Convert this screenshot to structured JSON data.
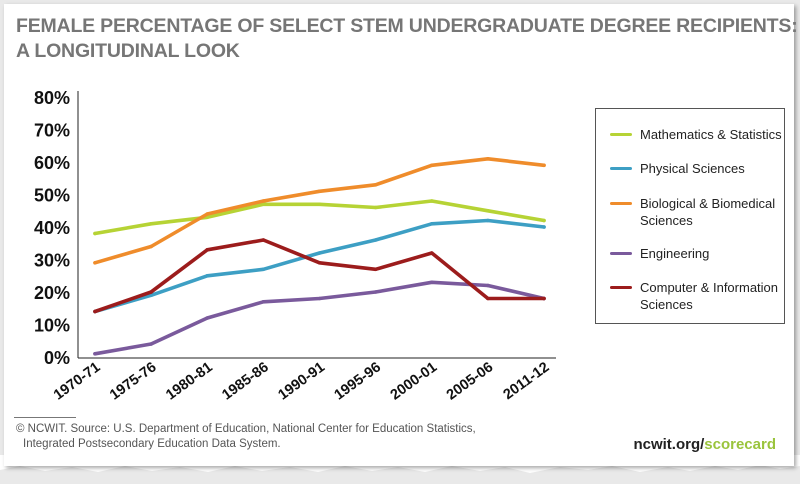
{
  "title_line1": "FEMALE PERCENTAGE OF SELECT STEM UNDERGRADUATE DEGREE RECIPIENTS:",
  "title_line2": "A LONGITUDINAL LOOK",
  "source_line1": "© NCWIT. Source: U.S. Department of Education, National Center for Education Statistics,",
  "source_line2": "Integrated Postsecondary Education Data System.",
  "brand_main": "ncwit.org/",
  "brand_accent": "scorecard",
  "colors": {
    "accent": "#9ac43c"
  },
  "chart_data": {
    "type": "line",
    "title": "FEMALE PERCENTAGE OF SELECT STEM UNDERGRADUATE DEGREE RECIPIENTS: A LONGITUDINAL LOOK",
    "xlabel": "",
    "ylabel": "",
    "ylim": [
      0,
      80
    ],
    "yticks": [
      "0%",
      "10%",
      "20%",
      "30%",
      "40%",
      "50%",
      "60%",
      "70%",
      "80%"
    ],
    "categories": [
      "1970-71",
      "1975-76",
      "1980-81",
      "1985-86",
      "1990-91",
      "1995-96",
      "2000-01",
      "2005-06",
      "2011-12"
    ],
    "grid": false,
    "legend_position": "right",
    "series": [
      {
        "name": "Mathematics & Statistics",
        "color": "#b6d335",
        "values": [
          38,
          41,
          43,
          47,
          47,
          46,
          48,
          45,
          42
        ]
      },
      {
        "name": "Physical Sciences",
        "color": "#3d9fc4",
        "values": [
          14,
          19,
          25,
          27,
          32,
          36,
          41,
          42,
          40
        ]
      },
      {
        "name": "Biological & Biomedical Sciences",
        "color": "#ef8c2b",
        "values": [
          29,
          34,
          44,
          48,
          51,
          53,
          59,
          61,
          59
        ]
      },
      {
        "name": "Engineering",
        "color": "#7a5a9c",
        "values": [
          1,
          4,
          12,
          17,
          18,
          20,
          23,
          22,
          18
        ]
      },
      {
        "name": "Computer & Information Sciences",
        "color": "#9c1c1c",
        "values": [
          14,
          20,
          33,
          36,
          29,
          27,
          32,
          18,
          18
        ]
      }
    ]
  }
}
